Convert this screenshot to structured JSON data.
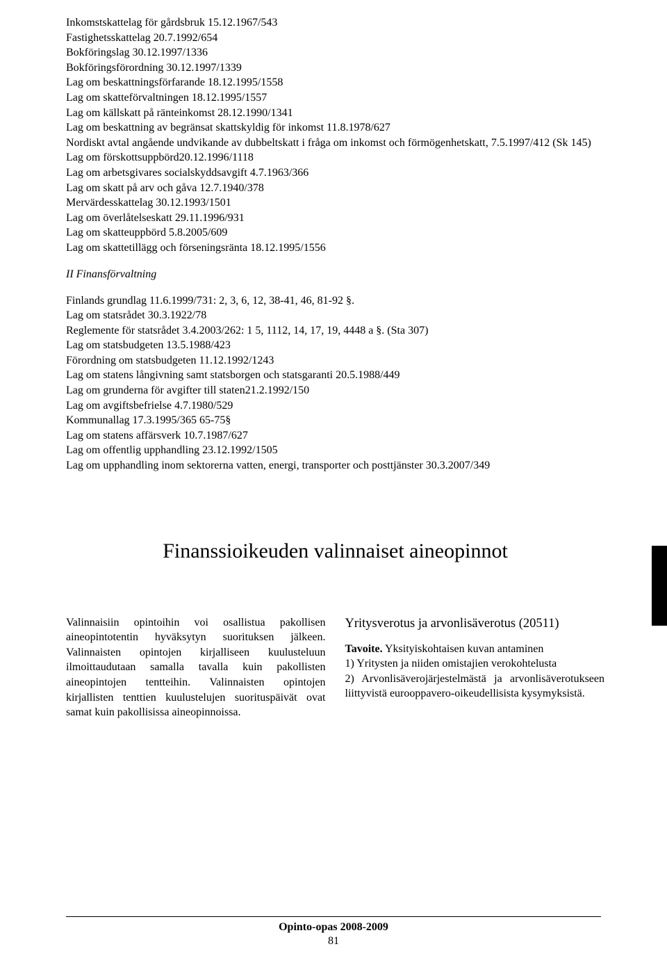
{
  "laws_section1": [
    "Inkomstskattelag för gårdsbruk 15.12.1967/543",
    "Fastighetsskattelag 20.7.1992/654",
    "Bokföringslag 30.12.1997/1336",
    "Bokföringsförordning 30.12.1997/1339",
    "Lag om beskattningsförfarande 18.12.1995/1558",
    "Lag om skatteförvaltningen 18.12.1995/1557",
    "Lag om källskatt på ränteinkomst 28.12.1990/1341",
    "Lag om beskattning av begränsat skattskyldig för inkomst 11.8.1978/627",
    "Nordiskt avtal angående undvikande av dubbeltskatt i fråga om inkomst och förmögenhetskatt, 7.5.1997/412 (Sk 145)",
    "Lag om förskottsuppbörd20.12.1996/1118",
    "Lag om arbetsgivares socialskyddsavgift 4.7.1963/366",
    "Lag om skatt på arv och gåva 12.7.1940/378",
    "Mervärdesskattelag 30.12.1993/1501",
    "Lag om överlåtelseskatt 29.11.1996/931",
    "Lag om skatteuppbörd 5.8.2005/609",
    "Lag om skattetillägg och förseningsränta 18.12.1995/1556"
  ],
  "section2_header": "II Finansförvaltning",
  "laws_section2": [
    "Finlands grundlag 11.6.1999/731: 2, 3, 6, 12, 38-41, 46, 81-92 §.",
    "Lag om statsrådet 30.3.1922/78",
    "Reglemente för statsrådet 3.4.2003/262: 1 5, 1112, 14, 17, 19, 4448 a §. (Sta 307)",
    "Lag om statsbudgeten 13.5.1988/423",
    "Förordning om statsbudgeten 11.12.1992/1243",
    "Lag om statens långivning samt statsborgen och statsgaranti 20.5.1988/449",
    "Lag om grunderna för avgifter till staten21.2.1992/150",
    "Lag om avgiftsbefrielse 4.7.1980/529",
    "Kommunallag 17.3.1995/365 65-75§",
    "Lag om statens affärsverk 10.7.1987/627",
    "Lag om offentlig upphandling 23.12.1992/1505",
    "Lag om upphandling inom sektorerna vatten, energi, transporter och posttjänster 30.3.2007/349"
  ],
  "main_title": "Finanssioikeuden valinnaiset aineopinnot",
  "left_col": "Valinnaisiin opintoihin voi osallistua pakollisen aineopintotentin hyväksytyn suorituksen jälkeen. Valinnaisten opintojen kirjalliseen kuulusteluun ilmoittaudutaan samalla tavalla kuin pakollisten aineopintojen tentteihin. Valinnaisten opintojen kirjallisten tenttien kuulustelujen suorituspäivät ovat samat kuin pakollisissa aineopinnoissa.",
  "right_col_title": "Yritysverotus ja arvonlisäverotus (20511)",
  "right_col_bold": "Tavoite.",
  "right_col_text": " Yksityiskohtaisen kuvan antaminen",
  "right_col_item1": "1) Yritysten ja niiden omistajien verokohtelusta",
  "right_col_item2": "2) Arvonlisäverojärjestelmästä ja arvonlisäverotukseen liittyvistä eurooppavero-oikeudellisista kysymyksistä.",
  "footer_title": "Opinto-opas 2008-2009",
  "footer_page": "81"
}
